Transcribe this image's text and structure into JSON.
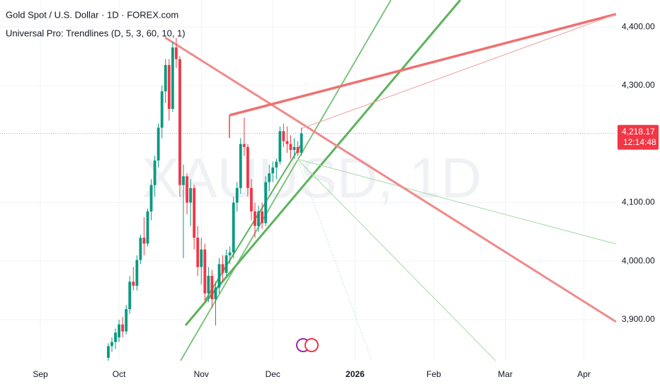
{
  "chart_data": {
    "type": "candlestick",
    "title": "Gold Spot / U.S. Dollar · 1D · FOREX.com",
    "subtitle": "Universal Pro: Trendlines (D, 5, 3, 60, 10, 1)",
    "watermark": "XAUUSD, 1D",
    "categories": [
      "Sep",
      null,
      null,
      null,
      null,
      null,
      null,
      null,
      null,
      null,
      null,
      null,
      null,
      null,
      null,
      null,
      null,
      null,
      null,
      null,
      null,
      null,
      "Oct",
      null,
      null,
      null,
      null,
      null,
      null,
      null,
      null,
      null,
      null,
      null,
      null,
      null,
      null,
      null,
      null,
      null,
      null,
      null,
      null,
      null,
      null,
      "Nov",
      null,
      null,
      null,
      null,
      null,
      null,
      null,
      null,
      null,
      null,
      null,
      null,
      null,
      null,
      null,
      null,
      null,
      null,
      null,
      "Dec",
      null,
      null,
      null,
      null,
      null,
      null,
      null,
      null,
      null,
      null,
      null,
      null,
      null,
      null,
      null,
      null,
      null,
      null,
      null,
      null,
      null,
      null,
      "2026",
      null,
      null,
      null,
      null,
      null,
      null,
      null,
      null,
      null,
      null,
      null,
      null,
      null,
      null,
      null,
      null,
      null,
      null,
      null,
      null,
      null,
      "Feb",
      null,
      null,
      null,
      null,
      null,
      null,
      null,
      null,
      null,
      null,
      null,
      null,
      null,
      null,
      null,
      null,
      null,
      null,
      null,
      "Mar",
      null,
      null,
      null,
      null,
      null,
      null,
      null,
      null,
      null,
      null,
      null,
      null,
      null,
      null,
      null,
      null,
      null,
      null,
      null,
      null,
      null,
      "Apr",
      null,
      null,
      null,
      null,
      null,
      null
    ],
    "open": [
      null,
      null,
      null,
      null,
      null,
      null,
      null,
      null,
      null,
      null,
      null,
      null,
      null,
      null,
      null,
      null,
      null,
      null,
      null,
      3835,
      3855,
      3862,
      3870,
      3892,
      3880,
      3918,
      3965,
      3958,
      4002,
      4040,
      4030,
      4085,
      4130,
      4172,
      4228,
      4290,
      4335,
      4260,
      4365,
      4345,
      4130,
      4145,
      4100,
      4125,
      4040,
      3990,
      4020,
      3945,
      3975,
      3935,
      3955,
      3995,
      3980,
      4010,
      4015,
      4100,
      4125,
      4200,
      4195,
      4125,
      4085,
      4060,
      4085,
      4065,
      4135,
      4150,
      4160,
      4170,
      4222,
      4205,
      4200,
      4190,
      4195,
      4185,
      null,
      null,
      null,
      null,
      null,
      null,
      null,
      null,
      null,
      null,
      null,
      null,
      null,
      null,
      null,
      null,
      null,
      null,
      null,
      null,
      null,
      null,
      null,
      null,
      null,
      null,
      null,
      null,
      null,
      null,
      null,
      null,
      null,
      null,
      null,
      null,
      null,
      null,
      null,
      null,
      null,
      null,
      null,
      null,
      null,
      null,
      null,
      null,
      null,
      null,
      null,
      null,
      null,
      null,
      null,
      null,
      null,
      null,
      null,
      null,
      null,
      null,
      null,
      null,
      null,
      null,
      null,
      null,
      null,
      null,
      null,
      null,
      null,
      null,
      null,
      null,
      null,
      null,
      null,
      null,
      null,
      null,
      null,
      null,
      null
    ],
    "high": [
      null,
      null,
      null,
      null,
      null,
      null,
      null,
      null,
      null,
      null,
      null,
      null,
      null,
      null,
      null,
      null,
      null,
      null,
      null,
      3860,
      3870,
      3885,
      3900,
      3905,
      3925,
      3975,
      3990,
      4010,
      4045,
      4075,
      4090,
      4140,
      4180,
      4235,
      4300,
      4345,
      4345,
      4375,
      4381,
      4350,
      4165,
      4150,
      4140,
      4130,
      4060,
      4040,
      4030,
      3990,
      3985,
      3965,
      4005,
      4010,
      4020,
      4025,
      4110,
      4135,
      4210,
      4245,
      4200,
      4140,
      4100,
      4095,
      4100,
      4145,
      4165,
      4170,
      4175,
      4230,
      4235,
      4230,
      4215,
      4210,
      4205,
      4228,
      null,
      null,
      null,
      null,
      null,
      null,
      null,
      null,
      null,
      null,
      null,
      null,
      null,
      null,
      null,
      null,
      null,
      null,
      null,
      null,
      null,
      null,
      null,
      null,
      null,
      null,
      null,
      null,
      null,
      null,
      null,
      null,
      null,
      null,
      null,
      null,
      null,
      null,
      null,
      null,
      null,
      null,
      null,
      null,
      null,
      null,
      null,
      null,
      null,
      null,
      null,
      null,
      null,
      null,
      null,
      null,
      null,
      null,
      null,
      null,
      null,
      null,
      null,
      null,
      null,
      null,
      null,
      null,
      null,
      null,
      null,
      null,
      null,
      null,
      null,
      null,
      null,
      null,
      null,
      null,
      null,
      null,
      null,
      null,
      null
    ],
    "low": [
      null,
      null,
      null,
      null,
      null,
      null,
      null,
      null,
      null,
      null,
      null,
      null,
      null,
      null,
      null,
      null,
      null,
      null,
      null,
      3828,
      3845,
      3850,
      3862,
      3870,
      3875,
      3910,
      3950,
      3950,
      3995,
      4010,
      4025,
      4070,
      4110,
      4160,
      4210,
      4270,
      4240,
      4255,
      4330,
      4110,
      4005,
      4080,
      4060,
      4020,
      3975,
      3960,
      3930,
      3930,
      3920,
      3890,
      3945,
      3965,
      3975,
      3995,
      4005,
      4085,
      4115,
      4180,
      4110,
      4070,
      4040,
      4050,
      4055,
      4060,
      4120,
      4135,
      4140,
      4165,
      4195,
      4185,
      4175,
      4175,
      4180,
      4180,
      null,
      null,
      null,
      null,
      null,
      null,
      null,
      null,
      null,
      null,
      null,
      null,
      null,
      null,
      null,
      null,
      null,
      null,
      null,
      null,
      null,
      null,
      null,
      null,
      null,
      null,
      null,
      null,
      null,
      null,
      null,
      null,
      null,
      null,
      null,
      null,
      null,
      null,
      null,
      null,
      null,
      null,
      null,
      null,
      null,
      null,
      null,
      null,
      null,
      null,
      null,
      null,
      null,
      null,
      null,
      null,
      null,
      null,
      null,
      null,
      null,
      null,
      null,
      null,
      null,
      null,
      null,
      null,
      null,
      null,
      null,
      null,
      null,
      null,
      null,
      null,
      null,
      null,
      null,
      null,
      null,
      null,
      null,
      null,
      null
    ],
    "close": [
      null,
      null,
      null,
      null,
      null,
      null,
      null,
      null,
      null,
      null,
      null,
      null,
      null,
      null,
      null,
      null,
      null,
      null,
      null,
      3855,
      3862,
      3878,
      3892,
      3880,
      3918,
      3965,
      3958,
      4002,
      4040,
      4030,
      4085,
      4130,
      4172,
      4228,
      4290,
      4335,
      4260,
      4365,
      4345,
      4130,
      4145,
      4100,
      4125,
      4040,
      3990,
      4020,
      3945,
      3975,
      3935,
      3955,
      3995,
      3980,
      4010,
      4015,
      4100,
      4125,
      4200,
      4195,
      4125,
      4085,
      4060,
      4085,
      4065,
      4135,
      4150,
      4160,
      4170,
      4222,
      4205,
      4200,
      4190,
      4195,
      4185,
      4218.17,
      null,
      null,
      null,
      null,
      null,
      null,
      null,
      null,
      null,
      null,
      null,
      null,
      null,
      null,
      null,
      null,
      null,
      null,
      null,
      null,
      null,
      null,
      null,
      null,
      null,
      null,
      null,
      null,
      null,
      null,
      null,
      null,
      null,
      null,
      null,
      null,
      null,
      null,
      null,
      null,
      null,
      null,
      null,
      null,
      null,
      null,
      null,
      null,
      null,
      null,
      null,
      null,
      null,
      null,
      null,
      null,
      null,
      null,
      null,
      null,
      null,
      null,
      null,
      null,
      null,
      null,
      null,
      null,
      null,
      null,
      null,
      null,
      null,
      null,
      null,
      null,
      null,
      null,
      null,
      null,
      null,
      null,
      null,
      null,
      null
    ],
    "up_color": "#089981",
    "down_color": "#f23645",
    "last_price_label": "4,218.17",
    "countdown": "12:14:48",
    "ylim": [
      3830,
      4446
    ],
    "yticks": [
      {
        "value": 3900,
        "label": "3,900.00"
      },
      {
        "value": 4000,
        "label": "4,000.00"
      },
      {
        "value": 4100,
        "label": "4,100.00"
      },
      {
        "value": 4300,
        "label": "4,300.00"
      },
      {
        "value": 4400,
        "label": "4,400.00"
      }
    ],
    "grid": true
  }
}
